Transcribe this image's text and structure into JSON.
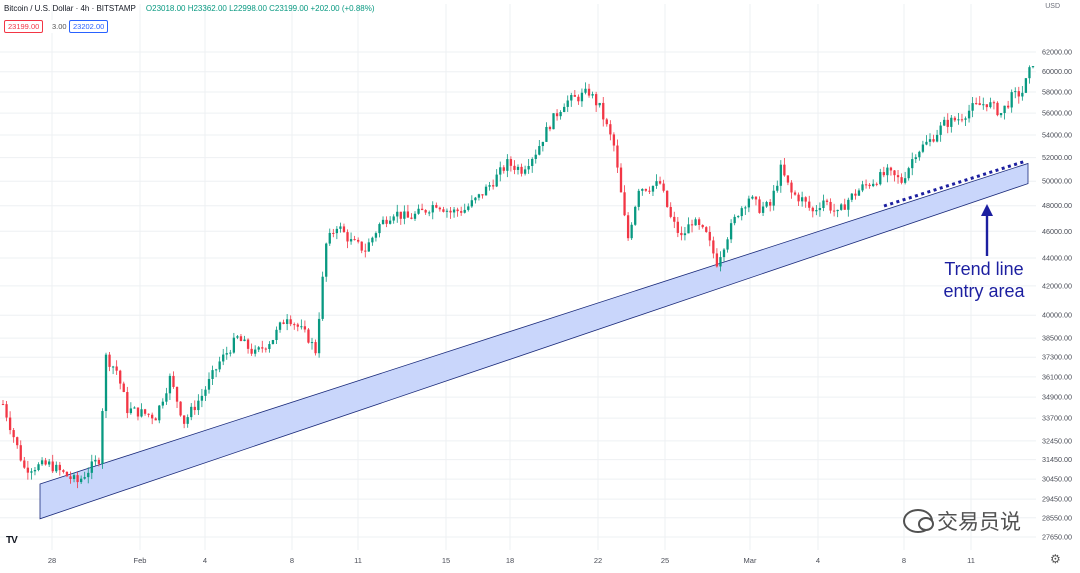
{
  "header": {
    "symbol": "Bitcoin / U.S. Dollar · 4h · BITSTAMP",
    "ohlc": "O23018.00 H23362.00 L22998.00 C23199.00 +202.00 (+0.88%)",
    "bid": "23199.00",
    "spread": "3.00",
    "ask": "23202.00",
    "currency": "USD"
  },
  "colors": {
    "up": "#089981",
    "down": "#f23645",
    "band_fill": "#c9d6fb",
    "band_stroke": "#1a2a7a",
    "dotted": "#1c1fa0",
    "grid": "#eef0f3",
    "axis_text": "#4a4d57"
  },
  "annotation": {
    "line1": "Trend line",
    "line2": "entry area"
  },
  "watermark": "交易员说",
  "brand": "TV",
  "chart_data": {
    "type": "candlestick",
    "x": [
      "28",
      "Feb",
      "4",
      "8",
      "11",
      "15",
      "18",
      "22",
      "25",
      "Mar",
      "4",
      "8",
      "11"
    ],
    "y_ticks": [
      "62000.00",
      "60000.00",
      "58000.00",
      "56000.00",
      "54000.00",
      "52000.00",
      "50000.00",
      "48000.00",
      "46000.00",
      "44000.00",
      "42000.00",
      "40000.00",
      "38500.00",
      "37300.00",
      "36100.00",
      "34900.00",
      "33700.00",
      "32450.00",
      "31450.00",
      "30450.00",
      "29450.00",
      "28550.00",
      "27650.00"
    ],
    "yscale": "log",
    "trend_band": {
      "lower_start": 28500,
      "lower_end": 49800,
      "upper_start": 30200,
      "upper_end": 51500
    },
    "price_path": [
      [
        0,
        34500
      ],
      [
        6,
        31000
      ],
      [
        13,
        31200
      ],
      [
        19,
        30500
      ],
      [
        21,
        30300
      ],
      [
        27,
        31500
      ],
      [
        29,
        37300
      ],
      [
        32,
        36500
      ],
      [
        35,
        34200
      ],
      [
        43,
        33800
      ],
      [
        47,
        36000
      ],
      [
        51,
        33500
      ],
      [
        56,
        35000
      ],
      [
        61,
        37000
      ],
      [
        66,
        38500
      ],
      [
        71,
        37500
      ],
      [
        76,
        38500
      ],
      [
        80,
        40000
      ],
      [
        84,
        39000
      ],
      [
        86,
        38500
      ],
      [
        88,
        37700
      ],
      [
        89,
        40000
      ],
      [
        91,
        45000
      ],
      [
        94,
        46500
      ],
      [
        98,
        45200
      ],
      [
        102,
        44600
      ],
      [
        106,
        46500
      ],
      [
        110,
        47500
      ],
      [
        114,
        47000
      ],
      [
        118,
        47500
      ],
      [
        122,
        48200
      ],
      [
        126,
        47500
      ],
      [
        130,
        47700
      ],
      [
        134,
        48700
      ],
      [
        138,
        50000
      ],
      [
        142,
        51500
      ],
      [
        146,
        51000
      ],
      [
        150,
        52500
      ],
      [
        154,
        55000
      ],
      [
        158,
        57000
      ],
      [
        162,
        57500
      ],
      [
        165,
        58000
      ],
      [
        168,
        56500
      ],
      [
        172,
        53000
      ],
      [
        175,
        47000
      ],
      [
        176,
        45500
      ],
      [
        179,
        49500
      ],
      [
        182,
        49500
      ],
      [
        185,
        49800
      ],
      [
        188,
        47000
      ],
      [
        191,
        45500
      ],
      [
        194,
        46800
      ],
      [
        198,
        45700
      ],
      [
        201,
        43700
      ],
      [
        204,
        45700
      ],
      [
        207,
        47500
      ],
      [
        210,
        48700
      ],
      [
        213,
        47800
      ],
      [
        216,
        48000
      ],
      [
        219,
        51000
      ],
      [
        222,
        49000
      ],
      [
        225,
        48500
      ],
      [
        228,
        47500
      ],
      [
        231,
        48500
      ],
      [
        235,
        47300
      ],
      [
        238,
        48500
      ],
      [
        242,
        49500
      ],
      [
        245,
        50000
      ],
      [
        249,
        50700
      ],
      [
        253,
        50000
      ],
      [
        257,
        52500
      ],
      [
        261,
        53500
      ],
      [
        265,
        55000
      ],
      [
        269,
        55500
      ],
      [
        273,
        56500
      ],
      [
        277,
        57000
      ],
      [
        281,
        56000
      ],
      [
        284,
        57500
      ],
      [
        287,
        58000
      ],
      [
        290,
        61000
      ]
    ]
  }
}
